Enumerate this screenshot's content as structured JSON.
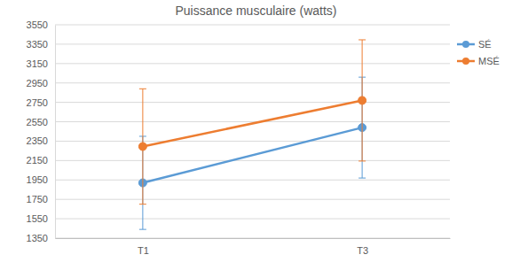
{
  "chart_data": {
    "type": "line",
    "title": "Puissance musculaire (watts)",
    "categories": [
      "T1",
      "T3"
    ],
    "series": [
      {
        "name": "SÉ",
        "color": "#5b9bd5",
        "values": [
          1920,
          2490
        ],
        "errors": [
          480,
          520
        ],
        "marker": "circle"
      },
      {
        "name": "MSÉ",
        "color": "#ed7d31",
        "values": [
          2295,
          2770
        ],
        "errors": [
          595,
          625
        ],
        "marker": "circle"
      }
    ],
    "ylim": [
      1350,
      3550
    ],
    "yticks": [
      1350,
      1550,
      1750,
      1950,
      2150,
      2350,
      2550,
      2750,
      2950,
      3150,
      3350,
      3550
    ],
    "grid": true,
    "legend": "right"
  }
}
